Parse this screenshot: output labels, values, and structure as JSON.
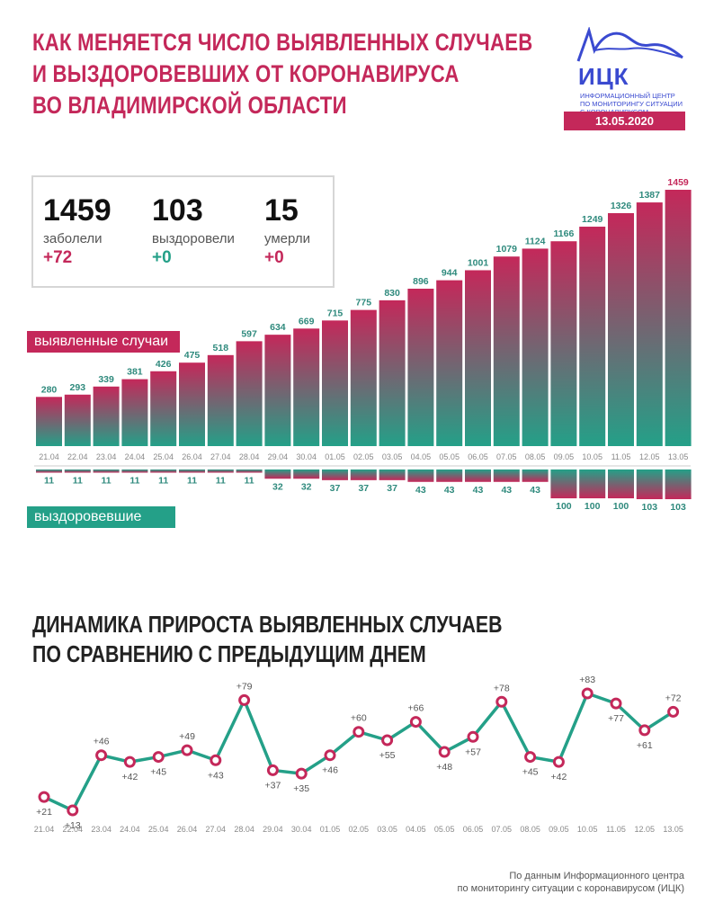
{
  "title_lines": [
    "КАК МЕНЯЕТСЯ ЧИСЛО ВЫЯВЛЕННЫХ СЛУЧАЕВ",
    "И ВЫЗДОРОВЕВШИХ ОТ КОРОНАВИРУСА",
    "ВО ВЛАДИМИРСКОЙ ОБЛАСТИ"
  ],
  "logo": {
    "name": "ИЦК",
    "subtitle_lines": [
      "ИНФОРМАЦИОННЫЙ ЦЕНТР",
      "ПО МОНИТОРИНГУ СИТУАЦИИ",
      "С КОРОНАВИРУСОМ"
    ],
    "date": "13.05.2020"
  },
  "stats": [
    {
      "value": "1459",
      "label": "заболели",
      "delta": "+72",
      "color": "#c4285a"
    },
    {
      "value": "103",
      "label": "выздоровели",
      "delta": "+0",
      "color": "#24a088"
    },
    {
      "value": "15",
      "label": "умерли",
      "delta": "+0",
      "color": "#c4285a"
    }
  ],
  "legend": {
    "cases": "выявленные случаи",
    "recovered": "выздоровевшие"
  },
  "colors": {
    "accent": "#c4285a",
    "green": "#24a088",
    "label_green": "#2f8a7d",
    "grey": "#8a8a8a"
  },
  "section2_title_lines": [
    "ДИНАМИКА ПРИРОСТА ВЫЯВЛЕННЫХ СЛУЧАЕВ",
    "ПО СРАВНЕНИЮ С ПРЕДЫДУЩИМ ДНЕМ"
  ],
  "source_lines": [
    "По данным Информационного центра",
    "по мониторингу ситуации с коронавирусом (ИЦК)"
  ],
  "chart_data": [
    {
      "type": "bar",
      "categories": [
        "21.04",
        "22.04",
        "23.04",
        "24.04",
        "25.04",
        "26.04",
        "27.04",
        "28.04",
        "29.04",
        "30.04",
        "01.05",
        "02.05",
        "03.05",
        "04.05",
        "05.05",
        "06.05",
        "07.05",
        "08.05",
        "09.05",
        "10.05",
        "11.05",
        "12.05",
        "13.05"
      ],
      "series": [
        {
          "name": "выявленные случаи",
          "values": [
            280,
            293,
            339,
            381,
            426,
            475,
            518,
            597,
            634,
            669,
            715,
            775,
            830,
            896,
            944,
            1001,
            1079,
            1124,
            1166,
            1249,
            1326,
            1387,
            1459
          ]
        },
        {
          "name": "выздоровевшие",
          "values": [
            11,
            11,
            11,
            11,
            11,
            11,
            11,
            11,
            32,
            32,
            37,
            37,
            37,
            43,
            43,
            43,
            43,
            43,
            100,
            100,
            100,
            103,
            103
          ]
        }
      ]
    },
    {
      "type": "line",
      "categories": [
        "21.04",
        "22.04",
        "23.04",
        "24.04",
        "25.04",
        "26.04",
        "27.04",
        "28.04",
        "29.04",
        "30.04",
        "01.05",
        "02.05",
        "03.05",
        "04.05",
        "05.05",
        "06.05",
        "07.05",
        "08.05",
        "09.05",
        "10.05",
        "11.05",
        "12.05",
        "13.05"
      ],
      "values": [
        21,
        13,
        46,
        42,
        45,
        49,
        43,
        79,
        37,
        35,
        46,
        60,
        55,
        66,
        48,
        57,
        78,
        45,
        42,
        83,
        77,
        61,
        72
      ],
      "labels": [
        "+21",
        "+13",
        "+46",
        "+42",
        "+45",
        "+49",
        "+43",
        "+79",
        "+37",
        "+35",
        "+46",
        "+60",
        "+55",
        "+66",
        "+48",
        "+57",
        "+78",
        "+45",
        "+42",
        "+83",
        "+77",
        "+61",
        "+72"
      ]
    }
  ]
}
